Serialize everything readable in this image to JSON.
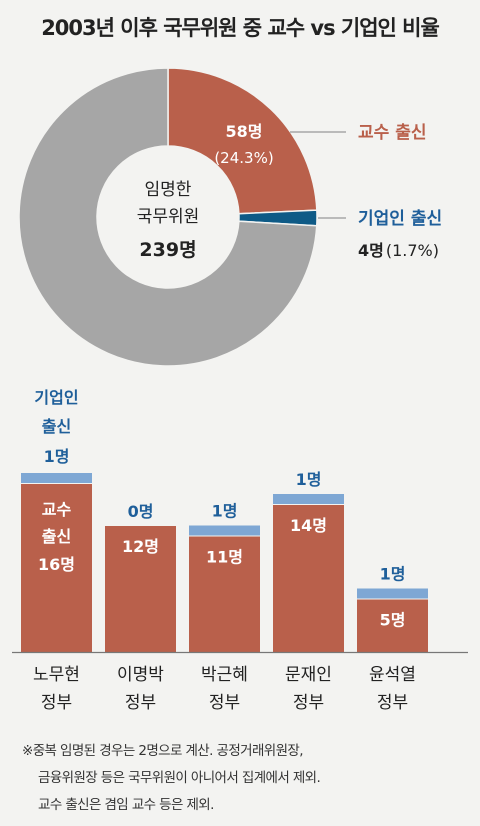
{
  "title": "2003년 이후 국무위원 중 교수 vs 기업인 비율",
  "colors": {
    "professor": "#b9604b",
    "business": "#0e5a86",
    "business_bar": "#7ea7d4",
    "other": "#a6a6a6",
    "label_blue": "#1f5f9a"
  },
  "chart_data": [
    {
      "type": "pie",
      "center_label": [
        "임명한",
        "국무위원"
      ],
      "center_total": "239명",
      "total": 239,
      "slices": [
        {
          "name": "교수 출신",
          "count": 58,
          "count_label": "58명",
          "percent_label": "(24.3%)",
          "percent": 24.3
        },
        {
          "name": "기업인 출신",
          "count": 4,
          "count_label": "4명",
          "percent_label": "(1.7%)",
          "percent": 1.7
        },
        {
          "name": "",
          "count": 177
        }
      ]
    },
    {
      "type": "bar",
      "stacked": true,
      "categories": [
        [
          "노무현",
          "정부"
        ],
        [
          "이명박",
          "정부"
        ],
        [
          "박근혜",
          "정부"
        ],
        [
          "문재인",
          "정부"
        ],
        [
          "윤석열",
          "정부"
        ]
      ],
      "series": [
        {
          "name": "교수 출신",
          "values": [
            16,
            12,
            11,
            14,
            5
          ],
          "labels": [
            "16명",
            "12명",
            "11명",
            "14명",
            "5명"
          ]
        },
        {
          "name": "기업인 출신",
          "values": [
            1,
            0,
            1,
            1,
            1
          ],
          "labels": [
            "1명",
            "0명",
            "1명",
            "1명",
            "1명"
          ]
        }
      ],
      "first_bar_labels": {
        "professor": [
          "교수",
          "출신"
        ],
        "business": [
          "기업인",
          "출신"
        ]
      }
    }
  ],
  "note": [
    "※중복 임명된 경우는 2명으로 계산. 공정거래위원장,",
    "금융위원장 등은 국무위원이 아니어서 집계에서 제외.",
    "교수 출신은 겸임 교수 등은 제외."
  ]
}
